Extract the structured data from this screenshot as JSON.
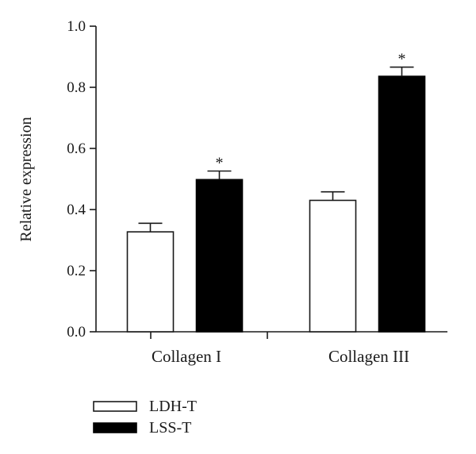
{
  "chart_data": {
    "type": "bar",
    "title": "",
    "xlabel": "",
    "ylabel": "Relative expression",
    "ylim": [
      0,
      1.0
    ],
    "yticks": [
      "0.0",
      "0.2",
      "0.4",
      "0.6",
      "0.8",
      "1.0"
    ],
    "grid": false,
    "legend_position": "bottom-left",
    "categories": [
      "Collagen I",
      "Collagen III"
    ],
    "series": [
      {
        "name": "LDH-T",
        "fill": "#ffffff",
        "stroke": "#1a1a1a",
        "values": [
          0.327,
          0.43
        ],
        "errors": [
          0.028,
          0.028
        ],
        "significance": [
          "",
          ""
        ]
      },
      {
        "name": "LSS-T",
        "fill": "#000000",
        "stroke": "#000000",
        "values": [
          0.498,
          0.836
        ],
        "errors": [
          0.028,
          0.03
        ],
        "significance": [
          "*",
          "*"
        ]
      }
    ]
  }
}
